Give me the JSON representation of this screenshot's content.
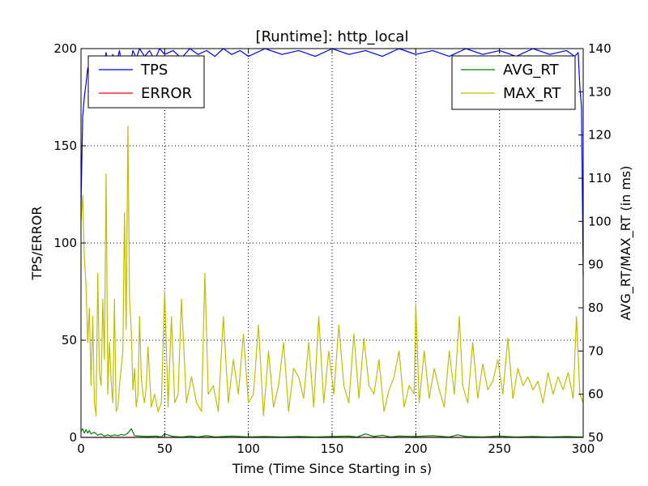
{
  "chart_data": {
    "type": "line",
    "title": "[Runtime]: http_local",
    "xlabel": "Time (Time Since Starting in s)",
    "ylabel_left": "TPS/ERROR",
    "ylabel_right": "AVG_RT/MAX_RT (in ms)",
    "xlim": [
      0,
      300
    ],
    "ylim_left": [
      0,
      200
    ],
    "ylim_right": [
      50,
      140
    ],
    "x_ticks": [
      0,
      50,
      100,
      150,
      200,
      250,
      300
    ],
    "y_ticks_left": [
      0,
      50,
      100,
      150,
      200
    ],
    "y_ticks_right": [
      50,
      60,
      70,
      80,
      90,
      100,
      110,
      120,
      130,
      140
    ],
    "grid": true,
    "legends": {
      "left": {
        "placement": "upper-left",
        "entries": [
          "TPS",
          "ERROR"
        ]
      },
      "right": {
        "placement": "upper-right",
        "entries": [
          "AVG_RT",
          "MAX_RT"
        ]
      }
    },
    "series": [
      {
        "name": "TPS",
        "axis": "left",
        "color": "#0000ff",
        "x": [
          0,
          1,
          2,
          3,
          4,
          5,
          7,
          9,
          11,
          13,
          15,
          17,
          19,
          21,
          23,
          25,
          27,
          29,
          31,
          33,
          35,
          38,
          41,
          44,
          47,
          50,
          55,
          60,
          65,
          70,
          75,
          80,
          85,
          90,
          95,
          100,
          110,
          120,
          130,
          140,
          150,
          160,
          170,
          180,
          190,
          200,
          210,
          220,
          230,
          240,
          250,
          260,
          270,
          280,
          290,
          295,
          297,
          298,
          299,
          300
        ],
        "y": [
          120,
          165,
          175,
          182,
          190,
          186,
          189,
          192,
          195,
          188,
          198,
          185,
          197,
          192,
          199,
          187,
          196,
          190,
          199,
          195,
          200,
          196,
          199,
          194,
          200,
          197,
          199,
          195,
          200,
          197,
          199,
          196,
          200,
          197,
          199,
          196,
          200,
          197,
          199,
          196,
          200,
          197,
          199,
          196,
          200,
          197,
          199,
          196,
          200,
          197,
          199,
          196,
          200,
          197,
          199,
          196,
          198,
          180,
          170,
          83
        ]
      },
      {
        "name": "ERROR",
        "axis": "left",
        "color": "#ff0000",
        "x": [
          0,
          300
        ],
        "y": [
          0,
          0
        ]
      },
      {
        "name": "AVG_RT",
        "axis": "right",
        "color": "#008000",
        "x": [
          0,
          1,
          2,
          3,
          4,
          5,
          6,
          8,
          10,
          12,
          14,
          16,
          18,
          20,
          22,
          24,
          26,
          28,
          30,
          32,
          35,
          40,
          45,
          48,
          50,
          55,
          60,
          65,
          70,
          75,
          80,
          90,
          100,
          110,
          120,
          130,
          140,
          150,
          160,
          165,
          170,
          175,
          180,
          185,
          190,
          200,
          210,
          220,
          225,
          230,
          240,
          250,
          260,
          270,
          280,
          290,
          300
        ],
        "y": [
          51.5,
          52.0,
          51.0,
          51.8,
          51.0,
          51.6,
          50.8,
          51.2,
          50.5,
          50.8,
          50.3,
          50.6,
          50.3,
          50.6,
          50.4,
          50.7,
          50.5,
          51.0,
          52.0,
          50.4,
          50.3,
          50.2,
          50.3,
          50.1,
          50.8,
          50.2,
          50.1,
          50.3,
          50.1,
          50.4,
          50.1,
          50.3,
          50.1,
          50.2,
          50.1,
          50.2,
          50.1,
          50.2,
          50.3,
          50.1,
          50.8,
          50.2,
          50.5,
          50.1,
          50.3,
          50.2,
          50.4,
          50.1,
          50.6,
          50.2,
          50.1,
          50.3,
          50.1,
          50.2,
          50.1,
          50.2,
          50.1
        ]
      },
      {
        "name": "MAX_RT",
        "axis": "right",
        "color": "#bfbf00",
        "x": [
          0,
          1,
          2,
          3,
          4,
          5,
          6,
          7,
          8,
          9,
          10,
          11,
          12,
          13,
          14,
          15,
          16,
          17,
          18,
          19,
          20,
          21,
          22,
          23,
          24,
          25,
          26,
          27,
          28,
          29,
          30,
          31,
          32,
          33,
          34,
          35,
          36,
          37,
          38,
          39,
          40,
          42,
          44,
          46,
          48,
          50,
          52,
          54,
          56,
          58,
          60,
          63,
          66,
          69,
          72,
          74,
          76,
          79,
          82,
          85,
          88,
          91,
          94,
          97,
          100,
          103,
          106,
          109,
          112,
          115,
          118,
          121,
          124,
          127,
          130,
          133,
          136,
          139,
          142,
          145,
          148,
          151,
          154,
          157,
          160,
          163,
          166,
          169,
          172,
          175,
          178,
          181,
          184,
          187,
          190,
          193,
          196,
          199,
          200,
          202,
          205,
          208,
          211,
          214,
          217,
          220,
          223,
          226,
          228,
          231,
          234,
          237,
          240,
          243,
          246,
          249,
          252,
          255,
          258,
          261,
          264,
          267,
          270,
          273,
          276,
          279,
          282,
          285,
          288,
          291,
          294,
          296,
          298,
          300
        ],
        "y": [
          100,
          106,
          92,
          85,
          72,
          80,
          62,
          78,
          58,
          55,
          88,
          65,
          62,
          82,
          68,
          111,
          60,
          72,
          63,
          58,
          82,
          56,
          57,
          62,
          66,
          70,
          102,
          75,
          122,
          82,
          75,
          61,
          66,
          57,
          60,
          78,
          64,
          60,
          58,
          62,
          71,
          57,
          60,
          56,
          58,
          84,
          57,
          78,
          58,
          60,
          82,
          58,
          64,
          58,
          56,
          88,
          60,
          62,
          56,
          78,
          58,
          68,
          60,
          74,
          58,
          60,
          76,
          55,
          70,
          57,
          62,
          72,
          56,
          66,
          64,
          59,
          72,
          57,
          78,
          58,
          70,
          60,
          76,
          62,
          58,
          74,
          59,
          73,
          62,
          60,
          68,
          56,
          61,
          64,
          70,
          57,
          62,
          60,
          81,
          58,
          70,
          59,
          66,
          61,
          57,
          70,
          60,
          78,
          62,
          58,
          72,
          59,
          67,
          61,
          63,
          68,
          60,
          73,
          59,
          66,
          62,
          64,
          61,
          63,
          58,
          65,
          60,
          64,
          61,
          65,
          59,
          78,
          60,
          58
        ]
      }
    ]
  }
}
